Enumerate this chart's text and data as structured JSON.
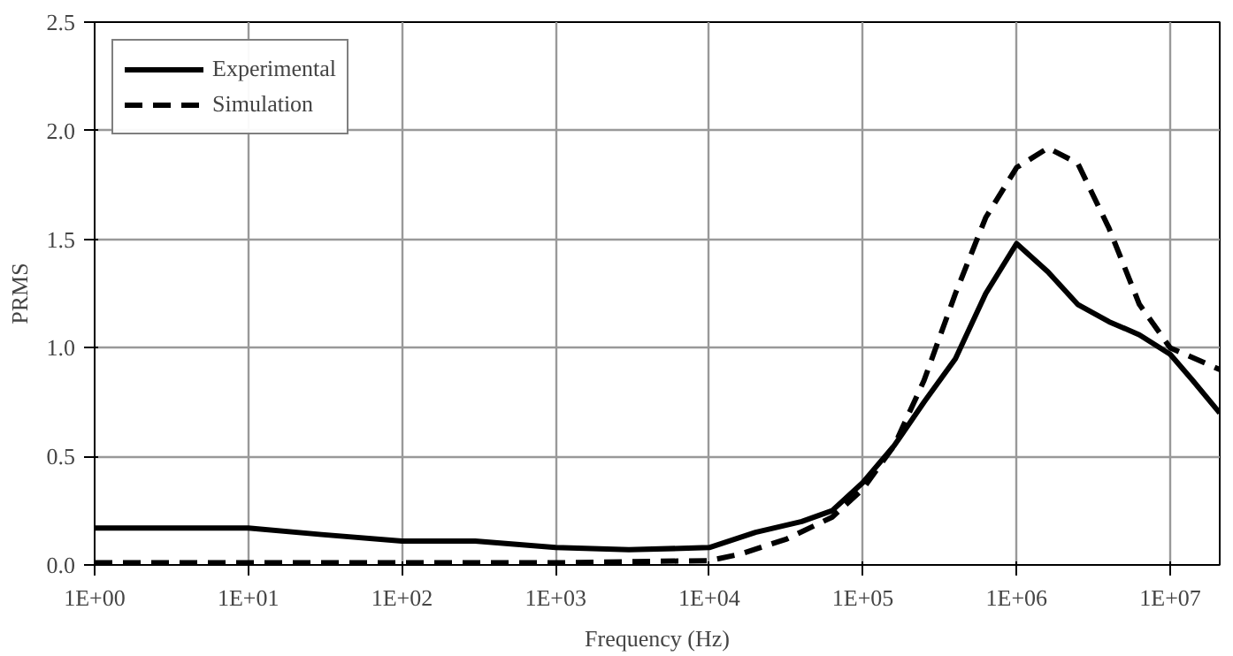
{
  "chart_data": {
    "type": "line",
    "xlabel": "Frequency (Hz)",
    "ylabel": "PRMS",
    "log": "x",
    "grid": true,
    "legend": "top left",
    "xlim": [
      1,
      21000000
    ],
    "ylim": [
      0,
      2.5
    ],
    "xticks": [
      {
        "value": 1,
        "label": "1E+00"
      },
      {
        "value": 10,
        "label": "1E+01"
      },
      {
        "value": 100,
        "label": "1E+02"
      },
      {
        "value": 1000,
        "label": "1E+03"
      },
      {
        "value": 10000,
        "label": "1E+04"
      },
      {
        "value": 100000,
        "label": "1E+05"
      },
      {
        "value": 1000000,
        "label": "1E+06"
      },
      {
        "value": 10000000,
        "label": "1E+07"
      }
    ],
    "yticks": [
      {
        "value": 0,
        "label": "0.0"
      },
      {
        "value": 0.5,
        "label": "0.5"
      },
      {
        "value": 1,
        "label": "1.0"
      },
      {
        "value": 1.5,
        "label": "1.5"
      },
      {
        "value": 2,
        "label": "2.0"
      },
      {
        "value": 2.5,
        "label": "2.5"
      }
    ],
    "series": [
      {
        "name": "Experimental",
        "color": "#000000",
        "line_style": "solid",
        "x": [
          1,
          3,
          10,
          30,
          100,
          300,
          1000,
          3000,
          10000,
          20000,
          40000,
          63000,
          100000,
          160000,
          250000,
          400000,
          630000,
          1000000,
          1600000,
          2500000,
          4000000,
          6300000,
          10000000,
          14000000,
          21000000
        ],
        "values": [
          0.17,
          0.17,
          0.17,
          0.14,
          0.11,
          0.11,
          0.08,
          0.07,
          0.08,
          0.15,
          0.2,
          0.25,
          0.38,
          0.55,
          0.75,
          0.95,
          1.25,
          1.48,
          1.35,
          1.2,
          1.12,
          1.06,
          0.97,
          0.85,
          0.7
        ]
      },
      {
        "name": "Simulation",
        "color": "#000000",
        "line_style": "dashed",
        "x": [
          1,
          10,
          100,
          1000,
          10000,
          16000,
          32000,
          63000,
          100000,
          160000,
          250000,
          400000,
          630000,
          1000000,
          1600000,
          2500000,
          4000000,
          6300000,
          10000000,
          21000000
        ],
        "values": [
          0.01,
          0.01,
          0.01,
          0.01,
          0.02,
          0.05,
          0.12,
          0.22,
          0.35,
          0.55,
          0.85,
          1.25,
          1.6,
          1.83,
          1.92,
          1.85,
          1.55,
          1.2,
          1.0,
          0.9
        ]
      }
    ]
  }
}
